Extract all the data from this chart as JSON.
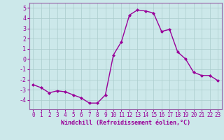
{
  "x": [
    0,
    1,
    2,
    3,
    4,
    5,
    6,
    7,
    8,
    9,
    10,
    11,
    12,
    13,
    14,
    15,
    16,
    17,
    18,
    19,
    20,
    21,
    22,
    23
  ],
  "y": [
    -2.5,
    -2.8,
    -3.3,
    -3.1,
    -3.2,
    -3.5,
    -3.8,
    -4.3,
    -4.3,
    -3.5,
    0.4,
    1.7,
    4.3,
    4.8,
    4.7,
    4.5,
    2.7,
    2.9,
    0.7,
    0.0,
    -1.3,
    -1.6,
    -1.6,
    -2.1
  ],
  "line_color": "#990099",
  "marker": "D",
  "marker_size": 2,
  "linewidth": 1.0,
  "xlabel": "Windchill (Refroidissement éolien,°C)",
  "xlabel_fontsize": 6,
  "ylabel_ticks": [
    5,
    4,
    3,
    2,
    1,
    0,
    -1,
    -2,
    -3,
    -4
  ],
  "ylim": [
    -4.9,
    5.5
  ],
  "xlim": [
    -0.5,
    23.5
  ],
  "xtick_fontsize": 5.5,
  "ytick_fontsize": 6,
  "bg_color": "#cce8ea",
  "grid_color": "#aacccc",
  "spine_color": "#9966aa"
}
